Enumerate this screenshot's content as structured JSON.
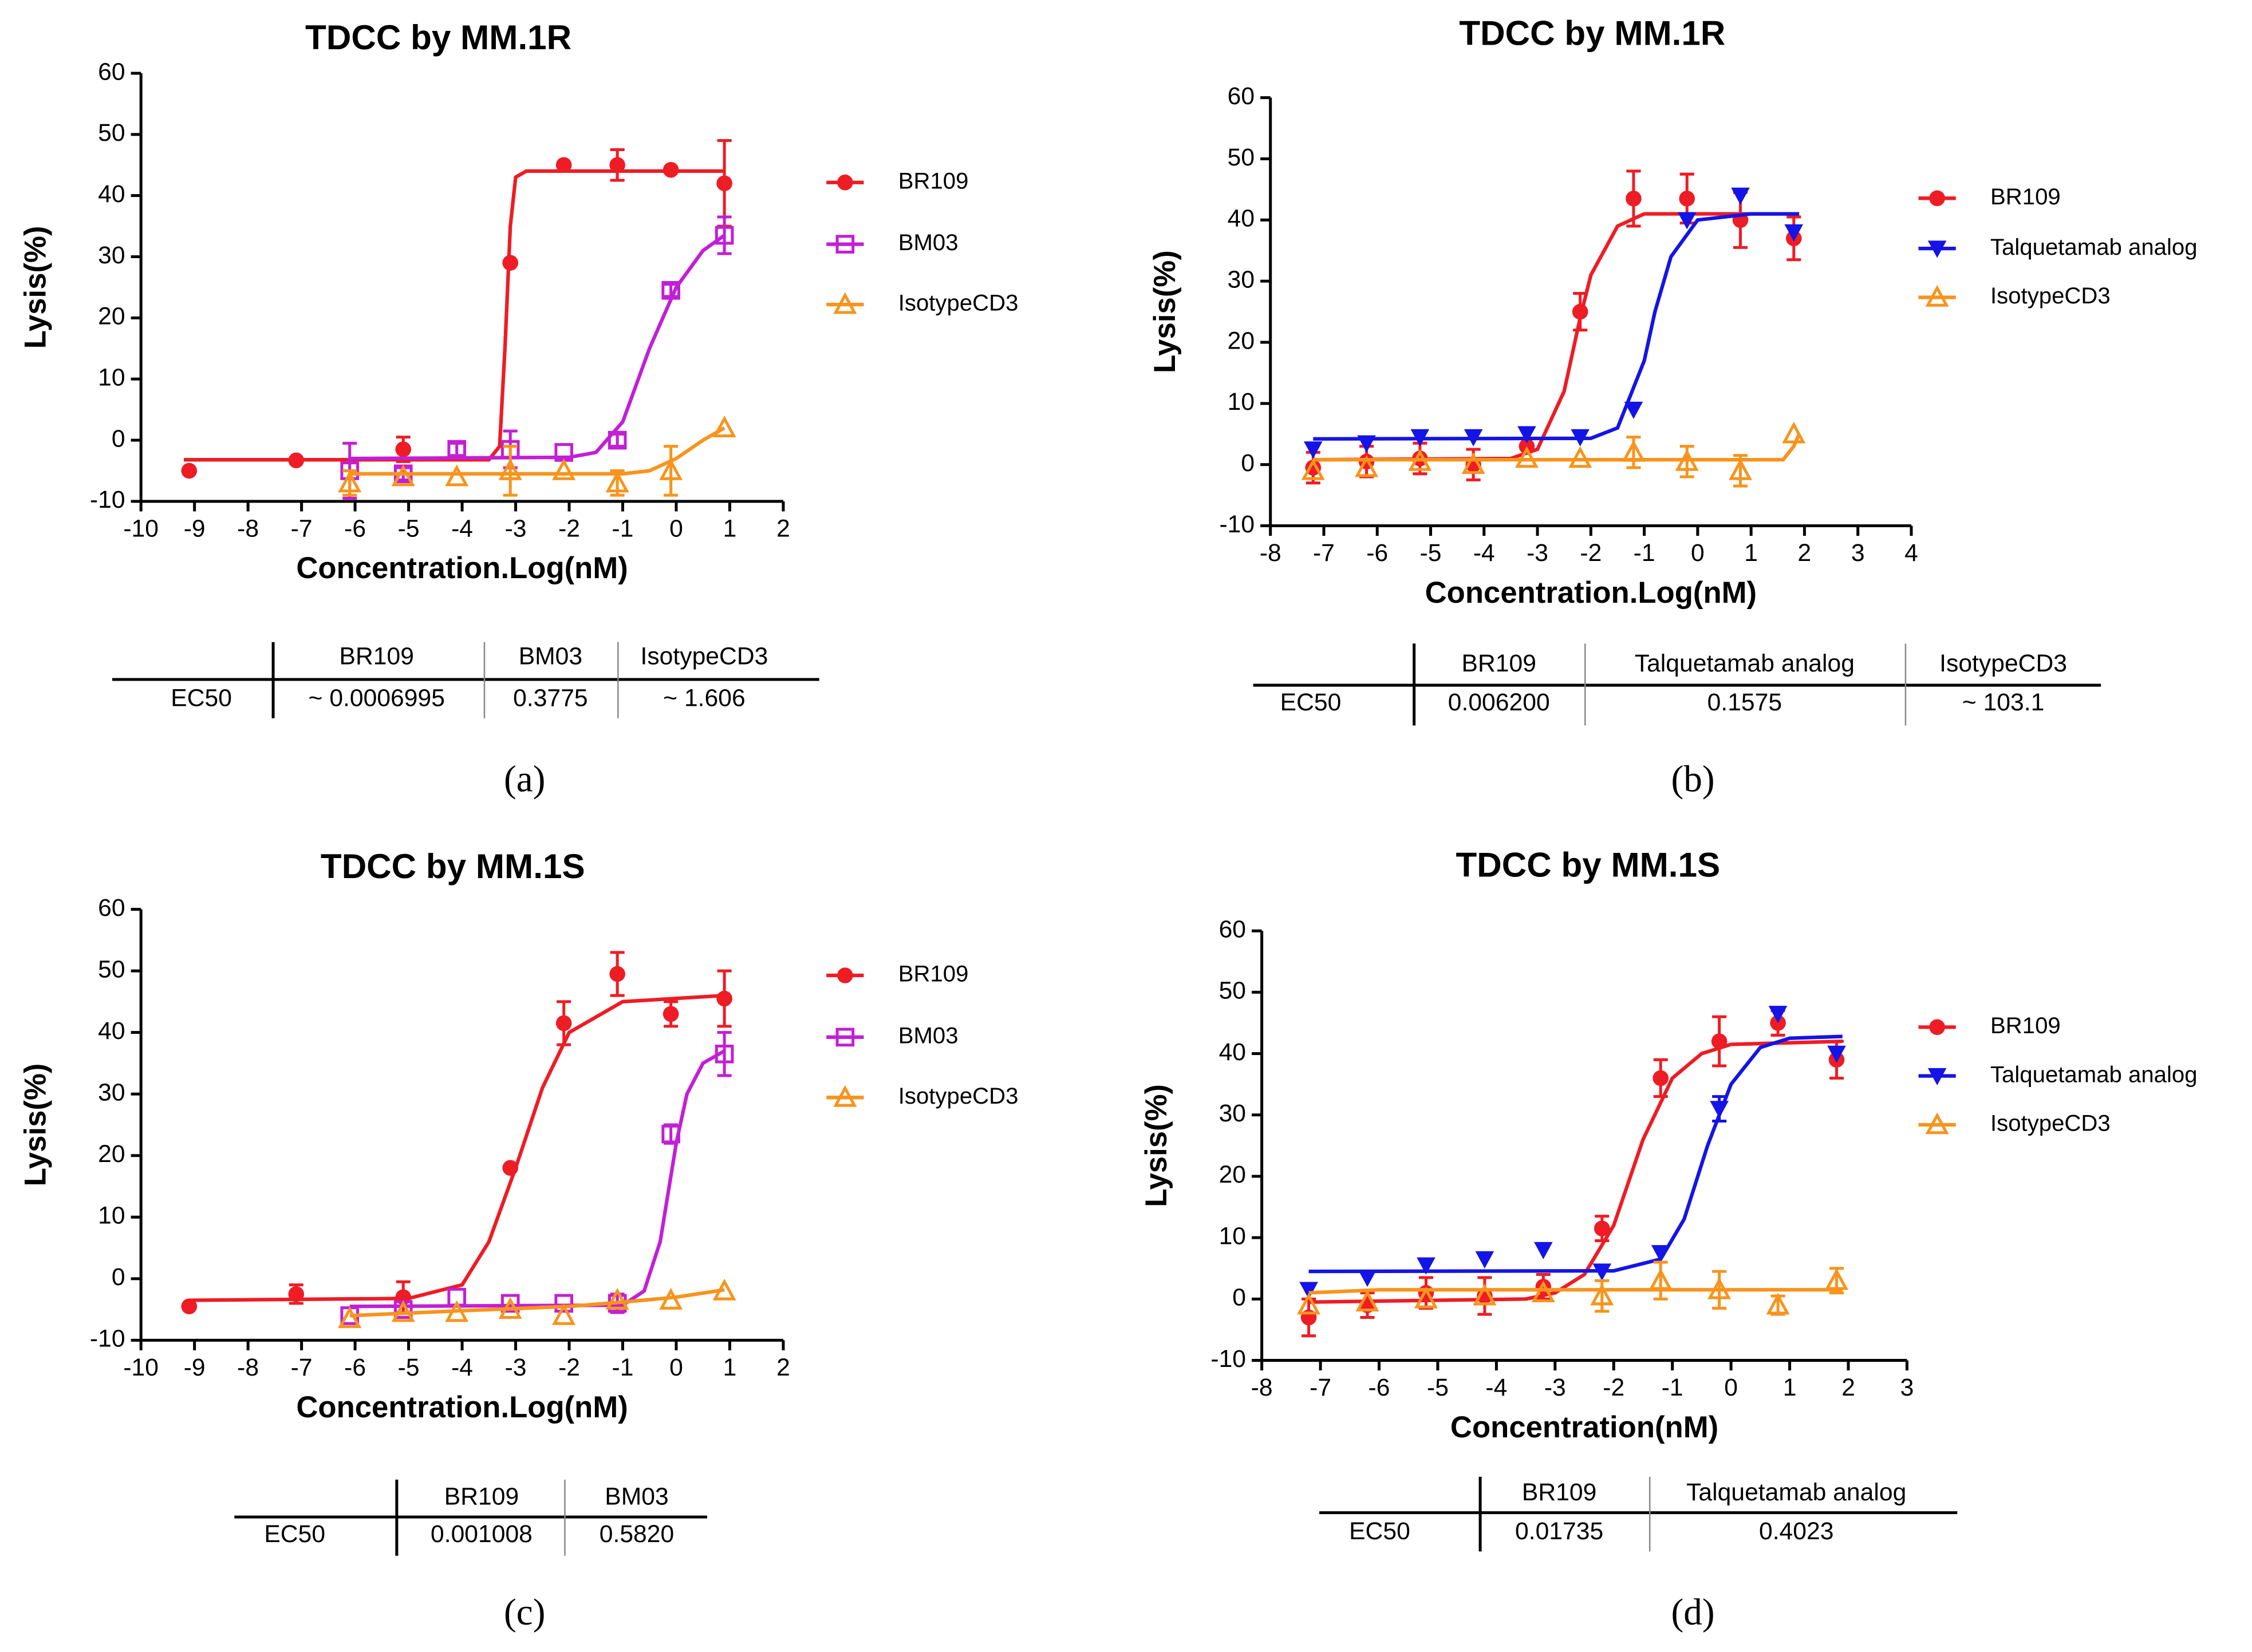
{
  "chart_data": [
    {
      "type": "scatter",
      "title": "TDCC by MM.1R",
      "x_label": "Concentration.Log(nM)",
      "y_label": "Lysis(%)",
      "panel_label": "(a)",
      "xlim": [
        -10,
        2
      ],
      "xticks": [
        -10,
        -9,
        -8,
        -7,
        -6,
        -5,
        -4,
        -3,
        -2,
        -1,
        0,
        1,
        2
      ],
      "ylim": [
        -10,
        60
      ],
      "yticks": [
        -10,
        0,
        10,
        20,
        30,
        40,
        50,
        60
      ],
      "series": [
        {
          "name": "BR109",
          "color": "#ee1c25",
          "marker": "circle",
          "x": [
            -9.1,
            -7.1,
            -5.1,
            -3.1,
            -2.1,
            -1.1,
            -0.1,
            0.9
          ],
          "values": [
            -5,
            -3.3,
            -1.5,
            29,
            45,
            45,
            44.2,
            42
          ],
          "errors": [
            null,
            null,
            2,
            null,
            null,
            2.5,
            null,
            7
          ],
          "curve": {
            "x": [
              -9.2,
              -3.5,
              -3.3,
              -3.2,
              -3.1,
              -3.0,
              -2.8,
              0.9
            ],
            "values": [
              -3.2,
              -3.2,
              -1,
              15,
              35,
              43,
              44,
              44
            ]
          }
        },
        {
          "name": "BM03",
          "color": "#c21fd6",
          "marker": "square",
          "x": [
            -6.1,
            -5.1,
            -4.1,
            -3.1,
            -2.1,
            -1.1,
            -0.1,
            0.9
          ],
          "values": [
            -5,
            -5.5,
            -1.5,
            -1.5,
            -2,
            0,
            24.5,
            33.5
          ],
          "errors": [
            4.5,
            1,
            1,
            3,
            null,
            1,
            1,
            3
          ],
          "curve": {
            "x": [
              -6.1,
              -2,
              -1.5,
              -1,
              -0.5,
              0,
              0.5,
              0.9
            ],
            "values": [
              -3,
              -2.8,
              -2,
              3,
              15,
              25,
              31,
              33.5
            ]
          }
        },
        {
          "name": "IsotypeCD3",
          "color": "#f7941d",
          "marker": "triangle",
          "x": [
            -6.1,
            -5.1,
            -4.1,
            -3.1,
            -2.1,
            -1.1,
            -0.1,
            0.9
          ],
          "values": [
            -7,
            -6,
            -6,
            -5,
            -5,
            -7,
            -5,
            2
          ],
          "errors": [
            2,
            null,
            null,
            4,
            null,
            2,
            4,
            null
          ],
          "curve": {
            "x": [
              -6.1,
              -1,
              -0.5,
              0,
              0.5,
              0.9
            ],
            "values": [
              -5.5,
              -5.5,
              -5,
              -3,
              0,
              2
            ]
          }
        }
      ],
      "table": {
        "columns": [
          "BR109",
          "BM03",
          "IsotypeCD3"
        ],
        "row_label": "EC50",
        "cells": [
          "~ 0.0006995",
          "0.3775",
          "~ 1.606"
        ]
      }
    },
    {
      "type": "scatter",
      "title": "TDCC by MM.1R",
      "x_label": "Concentration.Log(nM)",
      "y_label": "Lysis(%)",
      "panel_label": "(b)",
      "xlim": [
        -8,
        4
      ],
      "xticks": [
        -8,
        -7,
        -6,
        -5,
        -4,
        -3,
        -2,
        -1,
        0,
        1,
        2,
        3,
        4
      ],
      "ylim": [
        -10,
        60
      ],
      "yticks": [
        -10,
        0,
        10,
        20,
        30,
        40,
        50,
        60
      ],
      "series": [
        {
          "name": "BR109",
          "color": "#ee1c25",
          "marker": "circle",
          "x": [
            -7.2,
            -6.2,
            -5.2,
            -4.2,
            -3.2,
            -2.2,
            -1.2,
            -0.2,
            0.8,
            1.8
          ],
          "values": [
            -0.5,
            0.5,
            1,
            0,
            3,
            25,
            43.5,
            43.5,
            40,
            37
          ],
          "errors": [
            2.5,
            2.5,
            2.5,
            2.5,
            null,
            3,
            4.5,
            4,
            4.5,
            3.5
          ],
          "curve": {
            "x": [
              -7.2,
              -3.5,
              -3,
              -2.5,
              -2.2,
              -2,
              -1.5,
              -1,
              1.9
            ],
            "values": [
              0.8,
              1,
              2.5,
              12,
              24,
              31,
              39,
              41,
              41
            ]
          }
        },
        {
          "name": "Talquetamab analog",
          "color": "#1414e6",
          "marker": "down-triangle",
          "x": [
            -7.2,
            -6.2,
            -5.2,
            -4.2,
            -3.2,
            -2.2,
            -1.2,
            -0.2,
            0.8,
            1.8
          ],
          "values": [
            2.5,
            3.5,
            4.5,
            4.5,
            5,
            4.5,
            9,
            40,
            44,
            38
          ],
          "errors": [
            null,
            null,
            null,
            null,
            null,
            null,
            null,
            null,
            null,
            null
          ],
          "curve": {
            "x": [
              -7.2,
              -2,
              -1.5,
              -1,
              -0.8,
              -0.5,
              0,
              1,
              1.9
            ],
            "values": [
              4.2,
              4.3,
              6,
              17,
              25,
              34,
              40,
              41,
              41
            ]
          }
        },
        {
          "name": "IsotypeCD3",
          "color": "#f7941d",
          "marker": "triangle",
          "x": [
            -7.2,
            -6.2,
            -5.2,
            -4.2,
            -3.2,
            -2.2,
            -1.2,
            -0.2,
            0.8,
            1.8
          ],
          "values": [
            -1,
            -0.5,
            0.5,
            0,
            1,
            1,
            2,
            0.5,
            -1,
            5
          ],
          "errors": [
            null,
            null,
            null,
            null,
            null,
            null,
            2.5,
            2.5,
            2.5,
            null
          ],
          "curve": {
            "x": [
              -7.2,
              1.6,
              1.8,
              1.9
            ],
            "values": [
              0.8,
              0.8,
              3,
              5
            ]
          }
        }
      ],
      "table": {
        "columns": [
          "BR109",
          "Talquetamab analog",
          "IsotypeCD3"
        ],
        "row_label": "EC50",
        "cells": [
          "0.006200",
          "0.1575",
          "~ 103.1"
        ]
      }
    },
    {
      "type": "scatter",
      "title": "TDCC by MM.1S",
      "x_label": "Concentration.Log(nM)",
      "y_label": "Lysis(%)",
      "panel_label": "(c)",
      "xlim": [
        -10,
        2
      ],
      "xticks": [
        -10,
        -9,
        -8,
        -7,
        -6,
        -5,
        -4,
        -3,
        -2,
        -1,
        0,
        1,
        2
      ],
      "ylim": [
        -10,
        60
      ],
      "yticks": [
        -10,
        0,
        10,
        20,
        30,
        40,
        50,
        60
      ],
      "series": [
        {
          "name": "BR109",
          "color": "#ee1c25",
          "marker": "circle",
          "x": [
            -9.1,
            -7.1,
            -5.1,
            -3.1,
            -2.1,
            -1.1,
            -0.1,
            0.9
          ],
          "values": [
            -4.5,
            -2.5,
            -3,
            18,
            41.5,
            49.5,
            43,
            45.5
          ],
          "errors": [
            null,
            1.5,
            2.5,
            null,
            3.5,
            3.5,
            2,
            4.5
          ],
          "curve": {
            "x": [
              -9.1,
              -5,
              -4,
              -3.5,
              -3,
              -2.5,
              -2,
              -1,
              0.9
            ],
            "values": [
              -3.5,
              -3.2,
              -1,
              6,
              18,
              31,
              40,
              45,
              46
            ]
          }
        },
        {
          "name": "BM03",
          "color": "#c21fd6",
          "marker": "square",
          "x": [
            -6.1,
            -5.1,
            -4.1,
            -3.1,
            -2.1,
            -1.1,
            -0.1,
            0.9
          ],
          "values": [
            -6,
            -5,
            -3,
            -4,
            -4,
            -4,
            23.5,
            36.5
          ],
          "errors": [
            null,
            null,
            null,
            null,
            null,
            1.5,
            1.5,
            3.5
          ],
          "curve": {
            "x": [
              -6.1,
              -1,
              -0.6,
              -0.3,
              0,
              0.2,
              0.5,
              0.9
            ],
            "values": [
              -4.5,
              -4.3,
              -2,
              6,
              22,
              30,
              35,
              37
            ]
          }
        },
        {
          "name": "IsotypeCD3",
          "color": "#f7941d",
          "marker": "triangle",
          "x": [
            -6.1,
            -5.1,
            -4.1,
            -3.1,
            -2.1,
            -1.1,
            -0.1,
            0.9
          ],
          "values": [
            -6.5,
            -5.5,
            -5.5,
            -5,
            -6,
            -3.5,
            -3.5,
            -2
          ],
          "errors": [
            null,
            null,
            null,
            null,
            null,
            null,
            null,
            null
          ],
          "curve": {
            "x": [
              -6.1,
              -4,
              -2,
              -1,
              0,
              0.9
            ],
            "values": [
              -6,
              -5.2,
              -4.5,
              -3.8,
              -3,
              -1.8
            ]
          }
        }
      ],
      "table": {
        "columns": [
          "BR109",
          "BM03"
        ],
        "row_label": "EC50",
        "cells": [
          "0.001008",
          "0.5820"
        ]
      }
    },
    {
      "type": "scatter",
      "title": "TDCC by MM.1S",
      "x_label": "Concentration(nM)",
      "y_label": "Lysis(%)",
      "panel_label": "(d)",
      "xlim": [
        -8,
        3
      ],
      "xticks": [
        -8,
        -7,
        -6,
        -5,
        -4,
        -3,
        -2,
        -1,
        0,
        1,
        2,
        3
      ],
      "ylim": [
        -10,
        60
      ],
      "yticks": [
        -10,
        0,
        10,
        20,
        30,
        40,
        50,
        60
      ],
      "series": [
        {
          "name": "BR109",
          "color": "#ee1c25",
          "marker": "circle",
          "x": [
            -7.2,
            -6.2,
            -5.2,
            -4.2,
            -3.2,
            -2.2,
            -1.2,
            -0.2,
            0.8,
            1.8
          ],
          "values": [
            -3,
            -1,
            1,
            0.5,
            2,
            11.5,
            36,
            42,
            45,
            39
          ],
          "errors": [
            3,
            2,
            2.5,
            3,
            2,
            2,
            3,
            4,
            2,
            3
          ],
          "curve": {
            "x": [
              -7.2,
              -3.5,
              -3,
              -2.5,
              -2,
              -1.5,
              -1,
              -0.5,
              0,
              1.9
            ],
            "values": [
              -0.5,
              0,
              1,
              4,
              12,
              26,
              36,
              40,
              41.5,
              42
            ]
          }
        },
        {
          "name": "Talquetamab analog",
          "color": "#1414e6",
          "marker": "down-triangle",
          "x": [
            -7.2,
            -6.2,
            -5.2,
            -4.2,
            -3.2,
            -2.2,
            -1.2,
            -0.2,
            0.8,
            1.8
          ],
          "values": [
            1.5,
            3.5,
            5.5,
            6.5,
            8,
            4.5,
            7.5,
            31,
            46.5,
            40
          ],
          "errors": [
            null,
            null,
            null,
            null,
            null,
            null,
            null,
            2,
            null,
            null
          ],
          "curve": {
            "x": [
              -7.2,
              -2,
              -1.2,
              -0.8,
              -0.4,
              0,
              0.5,
              1,
              1.9
            ],
            "values": [
              4.5,
              4.6,
              6.5,
              13,
              25,
              35,
              41,
              42.5,
              42.8
            ]
          }
        },
        {
          "name": "IsotypeCD3",
          "color": "#f7941d",
          "marker": "triangle",
          "x": [
            -7.2,
            -6.2,
            -5.2,
            -4.2,
            -3.2,
            -2.2,
            -1.2,
            -0.2,
            0.8,
            1.8
          ],
          "values": [
            -1,
            -0.5,
            0,
            0.5,
            1,
            0.5,
            3,
            1.5,
            -1,
            3
          ],
          "errors": [
            null,
            null,
            null,
            null,
            null,
            2.5,
            3,
            3,
            1.5,
            2
          ],
          "curve": {
            "x": [
              -7.2,
              -6,
              1.9
            ],
            "values": [
              1,
              1.5,
              1.5
            ]
          }
        }
      ],
      "table": {
        "columns": [
          "BR109",
          "Talquetamab analog"
        ],
        "row_label": "EC50",
        "cells": [
          "0.01735",
          "0.4023"
        ]
      }
    }
  ]
}
